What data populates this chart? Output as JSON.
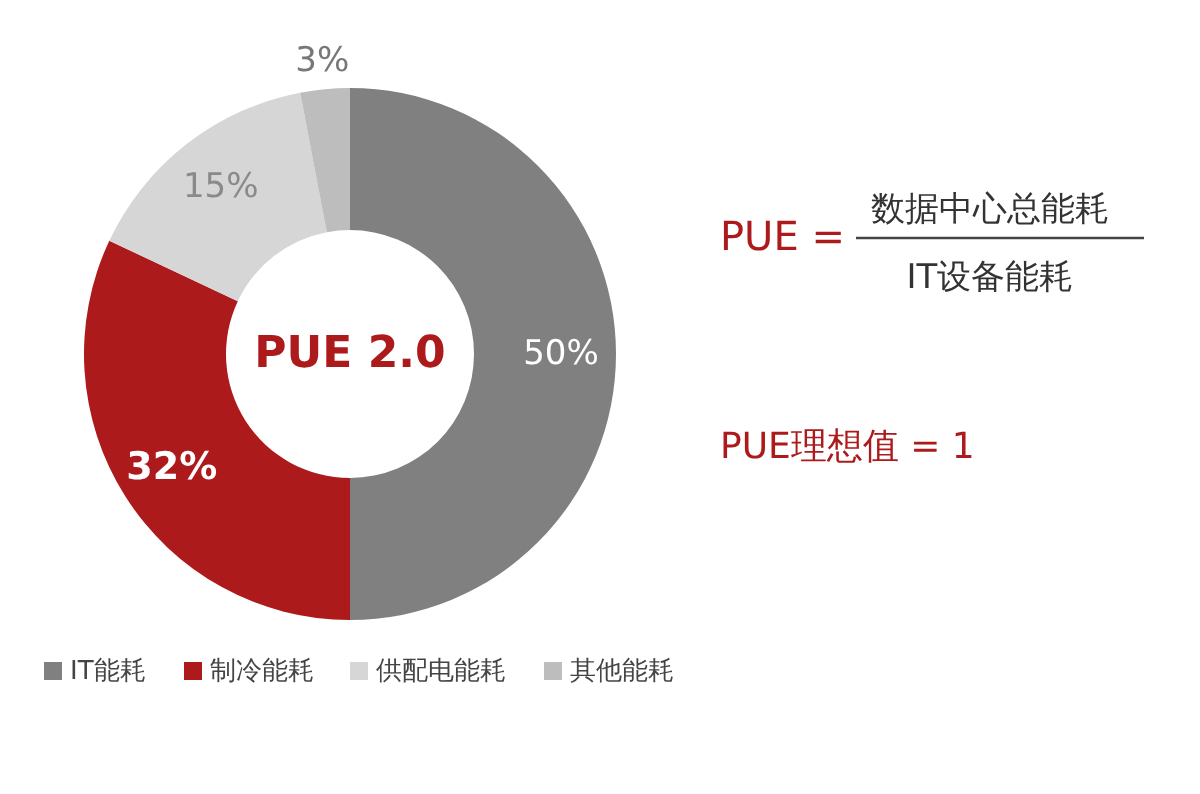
{
  "chart_data": {
    "type": "donut",
    "categories": [
      "IT能耗",
      "制冷能耗",
      "供配电能耗",
      "其他能耗"
    ],
    "values": [
      50,
      32,
      15,
      3
    ],
    "value_labels": [
      "50%",
      "32%",
      "15%",
      "3%"
    ],
    "colors": [
      "#808080",
      "#ad1a1c",
      "#d6d6d6",
      "#bdbdbd"
    ],
    "legend": "bottom",
    "annotations": [
      "PUE 2.0",
      "PUE =",
      "数据中心总能耗",
      "IT设备能耗",
      "PUE理想值 = 1"
    ]
  }
}
